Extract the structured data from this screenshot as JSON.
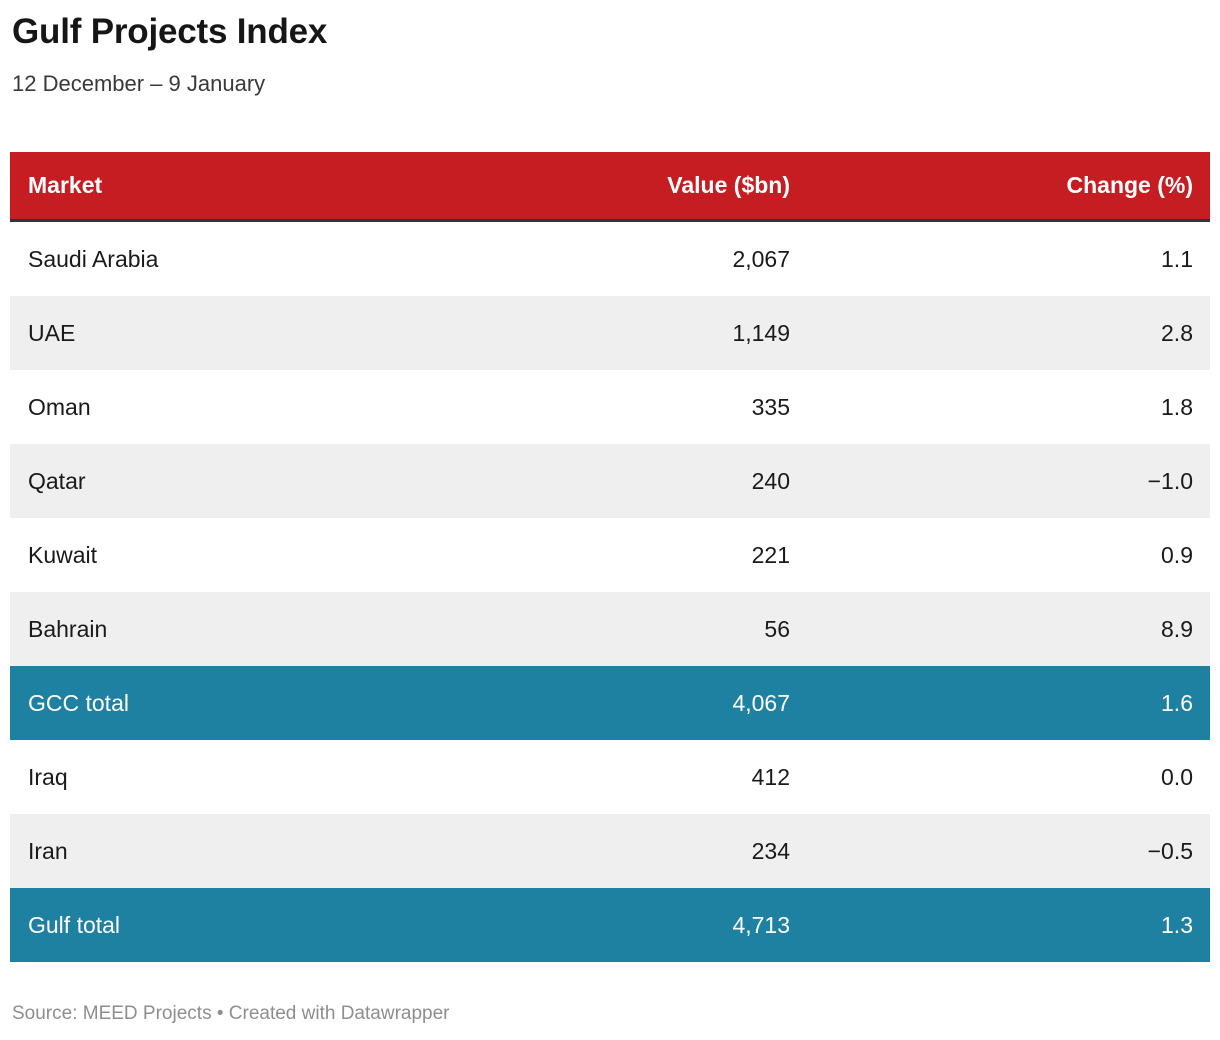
{
  "header": {
    "title": "Gulf Projects Index",
    "subtitle": "12 December – 9 January"
  },
  "table": {
    "columns": [
      "Market",
      "Value ($bn)",
      "Change (%)"
    ],
    "rows": [
      {
        "market": "Saudi Arabia",
        "value": "2,067",
        "change": "1.1",
        "type": "market"
      },
      {
        "market": "UAE",
        "value": "1,149",
        "change": "2.8",
        "type": "market"
      },
      {
        "market": "Oman",
        "value": "335",
        "change": "1.8",
        "type": "market"
      },
      {
        "market": "Qatar",
        "value": "240",
        "change": "−1.0",
        "type": "market"
      },
      {
        "market": "Kuwait",
        "value": "221",
        "change": "0.9",
        "type": "market"
      },
      {
        "market": "Bahrain",
        "value": "56",
        "change": "8.9",
        "type": "market"
      },
      {
        "market": "GCC total",
        "value": "4,067",
        "change": "1.6",
        "type": "total"
      },
      {
        "market": "Iraq",
        "value": "412",
        "change": "0.0",
        "type": "market"
      },
      {
        "market": "Iran",
        "value": "234",
        "change": "−0.5",
        "type": "market"
      },
      {
        "market": "Gulf total",
        "value": "4,713",
        "change": "1.3",
        "type": "total"
      }
    ]
  },
  "footer": {
    "text": "Source: MEED Projects • Created with Datawrapper"
  },
  "colors": {
    "header_bg": "#c61d23",
    "header_border": "#333333",
    "total_bg": "#1f81a2",
    "stripe_bg": "#efefef"
  },
  "chart_data": {
    "type": "table",
    "title": "Gulf Projects Index",
    "subtitle": "12 December – 9 January",
    "columns": [
      "Market",
      "Value ($bn)",
      "Change (%)"
    ],
    "rows": [
      [
        "Saudi Arabia",
        2067,
        1.1
      ],
      [
        "UAE",
        1149,
        2.8
      ],
      [
        "Oman",
        335,
        1.8
      ],
      [
        "Qatar",
        240,
        -1.0
      ],
      [
        "Kuwait",
        221,
        0.9
      ],
      [
        "Bahrain",
        56,
        8.9
      ],
      [
        "GCC total",
        4067,
        1.6
      ],
      [
        "Iraq",
        412,
        0.0
      ],
      [
        "Iran",
        234,
        -0.5
      ],
      [
        "Gulf total",
        4713,
        1.3
      ]
    ],
    "total_rows": [
      "GCC total",
      "Gulf total"
    ],
    "highlight_color": "#1f81a2",
    "header_color": "#c61d23",
    "source": "Source: MEED Projects • Created with Datawrapper"
  }
}
